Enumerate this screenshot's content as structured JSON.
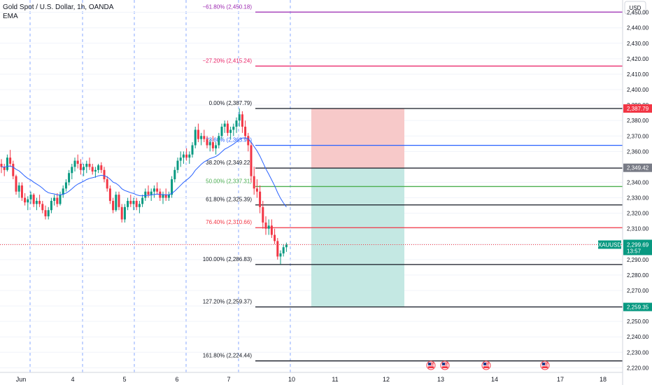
{
  "header": {
    "symbol_title": "Gold Spot / U.S. Dollar, 1h, OANDA",
    "indicator": "EMA"
  },
  "price_scale": {
    "currency": "USD",
    "ticks": [
      "2,450.00",
      "2,440.00",
      "2,430.00",
      "2,420.00",
      "2,410.00",
      "2,400.00",
      "2,390.00",
      "2,380.00",
      "2,370.00",
      "2,360.00",
      "2,350.00",
      "2,340.00",
      "2,330.00",
      "2,320.00",
      "2,310.00",
      "2,300.00",
      "2,290.00",
      "2,280.00",
      "2,270.00",
      "2,260.00",
      "2,250.00",
      "2,240.00",
      "2,230.00",
      "2,220.00"
    ]
  },
  "time_axis": {
    "labels": [
      "Jun",
      "4",
      "5",
      "6",
      "7",
      "10",
      "11",
      "12",
      "13",
      "14",
      "17",
      "18"
    ]
  },
  "chart_data": {
    "type": "candlestick",
    "symbol": "XAUUSD",
    "ylim": [
      2217,
      2458
    ],
    "last_price": {
      "label": "XAUUSD",
      "value": "2,299.69",
      "countdown": "13:57",
      "y": 2299.69
    },
    "price_tags": [
      {
        "value": "2,387.79",
        "y": 2387.79,
        "color": "#f23645"
      },
      {
        "value": "2,349.42",
        "y": 2349.42,
        "color": "#787b86"
      },
      {
        "value": "2,259.35",
        "y": 2259.35,
        "color": "#089981"
      }
    ],
    "fib_levels": [
      {
        "label": "−61.80% (2,450.18)",
        "y": 2450.18,
        "color": "#9c27b0"
      },
      {
        "label": "−27.20% (2,415.24)",
        "y": 2415.24,
        "color": "#e91e63"
      },
      {
        "label": "0.00% (2,387.79)",
        "y": 2387.79,
        "color": "#131722"
      },
      {
        "label": "23.60% (2,363.96)",
        "y": 2363.96,
        "color": "#2962ff"
      },
      {
        "label": "38.20% (2,349.22)",
        "y": 2349.22,
        "color": "#131722"
      },
      {
        "label": "50.00% (2,337.31)",
        "y": 2337.31,
        "color": "#4caf50"
      },
      {
        "label": "61.80% (2,325.39)",
        "y": 2325.39,
        "color": "#131722"
      },
      {
        "label": "76.40% (2,310.66)",
        "y": 2310.66,
        "color": "#f23645"
      },
      {
        "label": "100.00% (2,286.83)",
        "y": 2286.83,
        "color": "#131722"
      },
      {
        "label": "127.20% (2,259.37)",
        "y": 2259.37,
        "color": "#131722"
      },
      {
        "label": "161.80% (2,224.44)",
        "y": 2224.44,
        "color": "#131722"
      }
    ],
    "position_tool": {
      "entry": 2349.42,
      "stop": 2387.79,
      "target": 2259.35,
      "stop_color": "#f7c9c9",
      "target_color": "#c4e8e3"
    },
    "ema_color": "#2962ff",
    "up_color": "#089981",
    "down_color": "#f23645",
    "events": [
      "flag-icon-us",
      "flag-icon-us",
      "flag-icon-us",
      "flag-icon-us"
    ],
    "candles": [
      [
        2352,
        2355,
        2346,
        2350
      ],
      [
        2350,
        2352,
        2344,
        2348
      ],
      [
        2348,
        2358,
        2347,
        2356
      ],
      [
        2356,
        2361,
        2350,
        2352
      ],
      [
        2352,
        2354,
        2342,
        2344
      ],
      [
        2344,
        2345,
        2332,
        2334
      ],
      [
        2334,
        2340,
        2330,
        2338
      ],
      [
        2338,
        2340,
        2328,
        2330
      ],
      [
        2330,
        2333,
        2325,
        2327
      ],
      [
        2327,
        2331,
        2322,
        2329
      ],
      [
        2329,
        2334,
        2326,
        2332
      ],
      [
        2332,
        2333,
        2324,
        2326
      ],
      [
        2326,
        2330,
        2322,
        2328
      ],
      [
        2328,
        2332,
        2324,
        2326
      ],
      [
        2326,
        2328,
        2320,
        2322
      ],
      [
        2322,
        2325,
        2316,
        2318
      ],
      [
        2318,
        2324,
        2316,
        2322
      ],
      [
        2322,
        2330,
        2320,
        2328
      ],
      [
        2328,
        2332,
        2325,
        2330
      ],
      [
        2330,
        2333,
        2324,
        2326
      ],
      [
        2326,
        2334,
        2325,
        2332
      ],
      [
        2332,
        2338,
        2330,
        2336
      ],
      [
        2336,
        2342,
        2334,
        2340
      ],
      [
        2340,
        2348,
        2338,
        2346
      ],
      [
        2346,
        2352,
        2342,
        2350
      ],
      [
        2350,
        2356,
        2347,
        2354
      ],
      [
        2354,
        2358,
        2349,
        2352
      ],
      [
        2352,
        2355,
        2345,
        2348
      ],
      [
        2348,
        2352,
        2344,
        2350
      ],
      [
        2350,
        2354,
        2346,
        2352
      ],
      [
        2352,
        2356,
        2348,
        2350
      ],
      [
        2350,
        2352,
        2345,
        2347
      ],
      [
        2347,
        2350,
        2343,
        2348
      ],
      [
        2348,
        2352,
        2346,
        2351
      ],
      [
        2351,
        2353,
        2346,
        2348
      ],
      [
        2348,
        2350,
        2340,
        2342
      ],
      [
        2342,
        2344,
        2334,
        2336
      ],
      [
        2336,
        2338,
        2326,
        2328
      ],
      [
        2328,
        2330,
        2320,
        2322
      ],
      [
        2322,
        2334,
        2321,
        2332
      ],
      [
        2332,
        2334,
        2322,
        2324
      ],
      [
        2324,
        2326,
        2314,
        2316
      ],
      [
        2316,
        2326,
        2314,
        2324
      ],
      [
        2324,
        2330,
        2322,
        2328
      ],
      [
        2328,
        2332,
        2324,
        2326
      ],
      [
        2326,
        2330,
        2322,
        2328
      ],
      [
        2328,
        2330,
        2322,
        2324
      ],
      [
        2324,
        2328,
        2320,
        2326
      ],
      [
        2326,
        2332,
        2324,
        2330
      ],
      [
        2330,
        2336,
        2328,
        2334
      ],
      [
        2334,
        2338,
        2330,
        2332
      ],
      [
        2332,
        2336,
        2328,
        2334
      ],
      [
        2334,
        2338,
        2330,
        2336
      ],
      [
        2336,
        2340,
        2332,
        2334
      ],
      [
        2334,
        2336,
        2328,
        2330
      ],
      [
        2330,
        2334,
        2326,
        2332
      ],
      [
        2332,
        2336,
        2328,
        2330
      ],
      [
        2330,
        2334,
        2328,
        2332
      ],
      [
        2332,
        2344,
        2330,
        2342
      ],
      [
        2342,
        2350,
        2340,
        2348
      ],
      [
        2348,
        2356,
        2346,
        2354
      ],
      [
        2354,
        2360,
        2350,
        2356
      ],
      [
        2356,
        2360,
        2352,
        2358
      ],
      [
        2358,
        2362,
        2354,
        2356
      ],
      [
        2356,
        2360,
        2352,
        2358
      ],
      [
        2358,
        2366,
        2356,
        2364
      ],
      [
        2364,
        2376,
        2362,
        2374
      ],
      [
        2374,
        2378,
        2366,
        2368
      ],
      [
        2368,
        2372,
        2364,
        2370
      ],
      [
        2370,
        2374,
        2366,
        2368
      ],
      [
        2368,
        2370,
        2362,
        2364
      ],
      [
        2364,
        2368,
        2360,
        2366
      ],
      [
        2366,
        2370,
        2360,
        2362
      ],
      [
        2362,
        2366,
        2358,
        2364
      ],
      [
        2364,
        2372,
        2362,
        2370
      ],
      [
        2370,
        2378,
        2368,
        2376
      ],
      [
        2376,
        2380,
        2372,
        2378
      ],
      [
        2378,
        2380,
        2370,
        2372
      ],
      [
        2372,
        2376,
        2368,
        2374
      ],
      [
        2374,
        2378,
        2370,
        2376
      ],
      [
        2376,
        2382,
        2372,
        2380
      ],
      [
        2380,
        2387.79,
        2376,
        2384
      ],
      [
        2384,
        2386,
        2372,
        2376
      ],
      [
        2376,
        2380,
        2368,
        2370
      ],
      [
        2370,
        2372,
        2360,
        2364
      ],
      [
        2364,
        2366,
        2340,
        2344
      ],
      [
        2344,
        2350,
        2332,
        2336
      ],
      [
        2336,
        2342,
        2330,
        2334
      ],
      [
        2334,
        2338,
        2320,
        2324
      ],
      [
        2324,
        2328,
        2310,
        2314
      ],
      [
        2314,
        2318,
        2306,
        2310
      ],
      [
        2310,
        2316,
        2306,
        2312
      ],
      [
        2312,
        2316,
        2304,
        2306
      ],
      [
        2306,
        2310,
        2300,
        2302
      ],
      [
        2302,
        2304,
        2290,
        2292
      ],
      [
        2292,
        2296,
        2287,
        2294
      ],
      [
        2294,
        2300,
        2292,
        2298
      ],
      [
        2298,
        2301,
        2295,
        2299.69
      ]
    ]
  }
}
